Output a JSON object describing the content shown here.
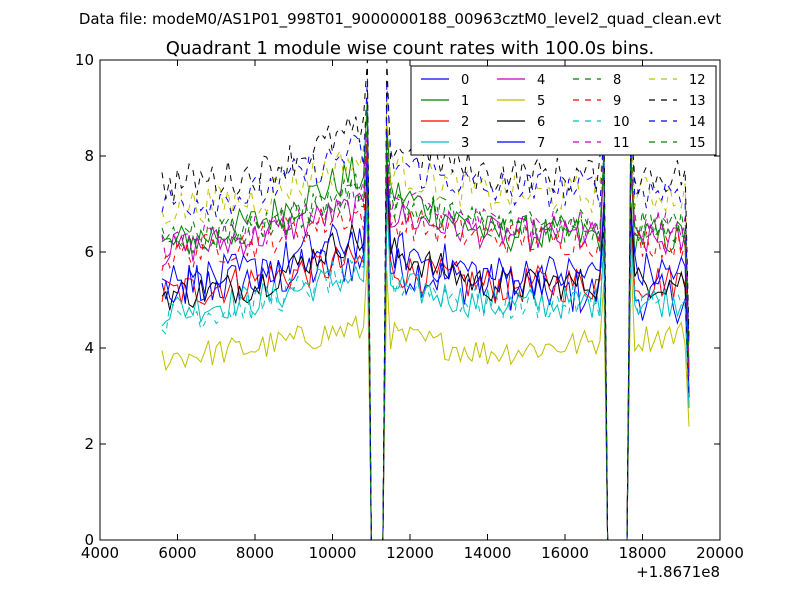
{
  "chart_data": {
    "type": "line",
    "suptitle": "Data file: modeM0/AS1P01_998T01_9000000188_00963cztM0_level2_quad_clean.evt",
    "title": "Quadrant 1 module wise count rates with 100.0s bins.",
    "xlabel": "",
    "ylabel": "",
    "x_offset_label": "+1.8671e8",
    "xlim": [
      4000,
      20000
    ],
    "ylim": [
      0,
      10
    ],
    "xticks": [
      4000,
      6000,
      8000,
      10000,
      12000,
      14000,
      16000,
      18000,
      20000
    ],
    "xtick_labels": [
      "4000",
      "6000",
      "8000",
      "10000",
      "12000",
      "14000",
      "16000",
      "18000",
      "20000"
    ],
    "yticks": [
      0,
      2,
      4,
      6,
      8,
      10
    ],
    "ytick_labels": [
      "0",
      "2",
      "4",
      "6",
      "8",
      "10"
    ],
    "grid": false,
    "legend_position": "top-right",
    "legend_columns": 4,
    "x_start": 5600,
    "x_step": 100,
    "x_end": 19200,
    "gaps": [
      [
        11000,
        11300
      ],
      [
        17100,
        17600
      ]
    ],
    "series": [
      {
        "name": "0",
        "color": "#0000ff",
        "dash": false,
        "base": [
          5.2,
          5.4,
          5.8,
          5.3,
          5.0
        ],
        "amp": 0.5
      },
      {
        "name": "1",
        "color": "#008000",
        "dash": false,
        "base": [
          6.1,
          6.6,
          7.6,
          6.4,
          6.3
        ],
        "amp": 0.4
      },
      {
        "name": "2",
        "color": "#ff0000",
        "dash": false,
        "base": [
          5.1,
          5.4,
          5.8,
          5.3,
          5.4
        ],
        "amp": 0.4
      },
      {
        "name": "3",
        "color": "#00bfbf",
        "dash": false,
        "base": [
          4.8,
          5.0,
          5.5,
          4.9,
          5.0
        ],
        "amp": 0.35
      },
      {
        "name": "4",
        "color": "#bf00bf",
        "dash": false,
        "base": [
          6.0,
          6.3,
          6.9,
          6.4,
          6.2
        ],
        "amp": 0.35
      },
      {
        "name": "5",
        "color": "#bfbf00",
        "dash": false,
        "base": [
          3.8,
          4.0,
          4.4,
          3.9,
          4.3
        ],
        "amp": 0.3
      },
      {
        "name": "6",
        "color": "#000000",
        "dash": false,
        "base": [
          5.1,
          5.3,
          6.3,
          5.3,
          5.4
        ],
        "amp": 0.35
      },
      {
        "name": "7",
        "color": "#0000ff",
        "dash": false,
        "base": [
          5.3,
          5.6,
          6.3,
          5.5,
          5.6
        ],
        "amp": 0.45
      },
      {
        "name": "8",
        "color": "#008000",
        "dash": true,
        "base": [
          6.3,
          6.5,
          7.2,
          6.6,
          6.5
        ],
        "amp": 0.35
      },
      {
        "name": "9",
        "color": "#ff0000",
        "dash": true,
        "base": [
          5.9,
          6.2,
          6.8,
          6.3,
          6.2
        ],
        "amp": 0.35
      },
      {
        "name": "10",
        "color": "#00bfbf",
        "dash": true,
        "base": [
          4.6,
          4.9,
          5.6,
          4.9,
          5.0
        ],
        "amp": 0.35
      },
      {
        "name": "11",
        "color": "#bf00bf",
        "dash": true,
        "base": [
          6.2,
          6.4,
          7.2,
          6.6,
          6.5
        ],
        "amp": 0.35
      },
      {
        "name": "12",
        "color": "#bfbf00",
        "dash": true,
        "base": [
          6.9,
          7.1,
          7.9,
          7.2,
          7.2
        ],
        "amp": 0.4
      },
      {
        "name": "13",
        "color": "#000000",
        "dash": true,
        "base": [
          7.4,
          7.6,
          8.5,
          7.6,
          7.6
        ],
        "amp": 0.4
      },
      {
        "name": "14",
        "color": "#0000ff",
        "dash": true,
        "base": [
          7.0,
          7.2,
          8.1,
          7.3,
          7.3
        ],
        "amp": 0.4
      },
      {
        "name": "15",
        "color": "#008000",
        "dash": true,
        "base": [
          6.2,
          6.4,
          7.3,
          6.5,
          6.6
        ],
        "amp": 0.35
      }
    ]
  }
}
